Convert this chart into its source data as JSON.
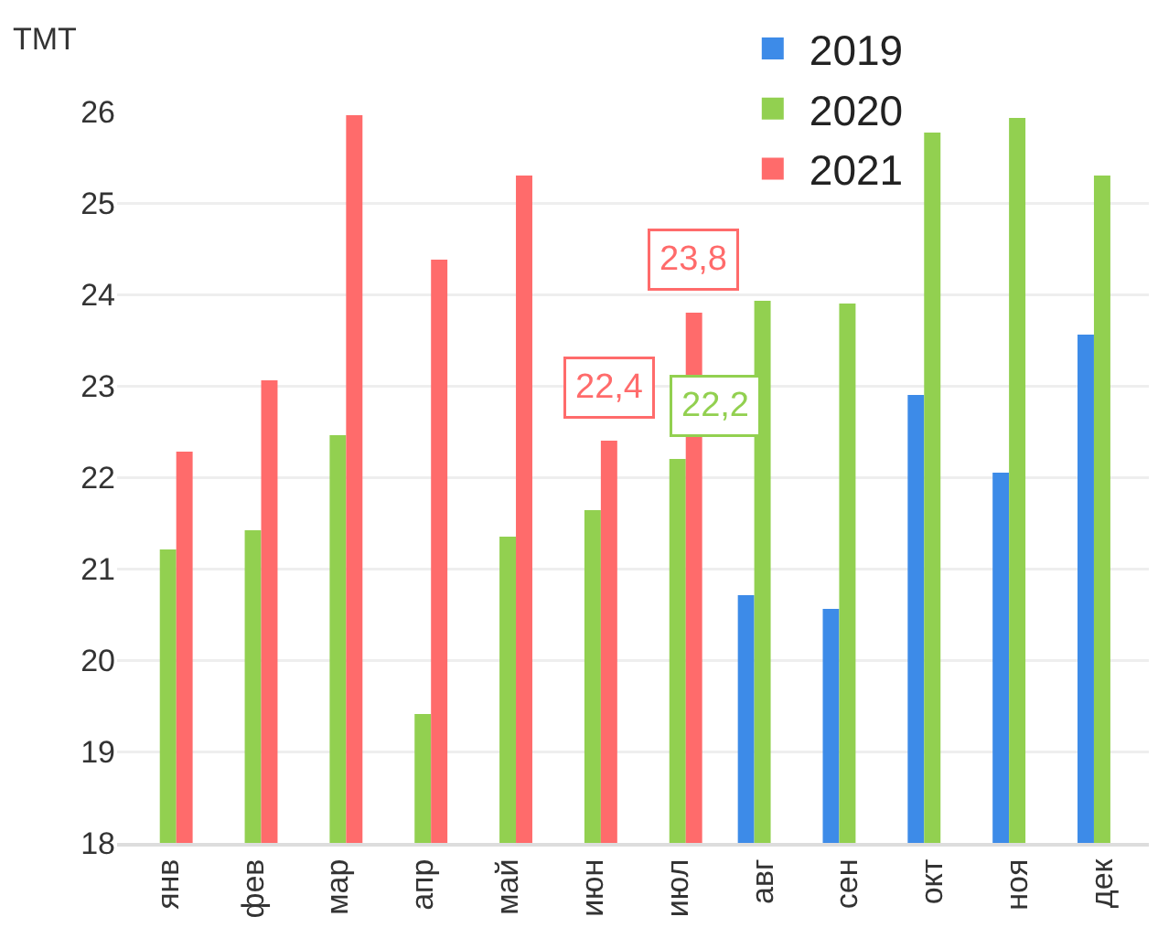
{
  "chart_data": {
    "type": "bar",
    "ylabel": "ТМТ",
    "categories": [
      "янв",
      "фев",
      "мар",
      "апр",
      "май",
      "июн",
      "июл",
      "авг",
      "сен",
      "окт",
      "ноя",
      "дек"
    ],
    "series": [
      {
        "name": "2019",
        "color": "#3d8be8",
        "values": [
          null,
          null,
          null,
          null,
          null,
          null,
          null,
          20.71,
          20.56,
          22.9,
          22.05,
          23.56
        ]
      },
      {
        "name": "2020",
        "color": "#92d050",
        "values": [
          21.21,
          21.42,
          22.46,
          19.41,
          21.35,
          21.64,
          22.2,
          23.93,
          23.9,
          25.77,
          25.93,
          25.3
        ],
        "value_labels": [
          null,
          null,
          null,
          null,
          null,
          null,
          "22,2",
          null,
          null,
          null,
          null,
          null
        ]
      },
      {
        "name": "2021",
        "color": "#ff6b6b",
        "values": [
          22.28,
          23.06,
          25.96,
          24.38,
          25.3,
          22.4,
          23.8,
          null,
          null,
          null,
          null,
          null
        ],
        "value_labels": [
          null,
          null,
          null,
          null,
          null,
          "22,4",
          "23,8",
          null,
          null,
          null,
          null,
          null
        ]
      }
    ],
    "ylim": [
      18,
      26
    ],
    "yticks": [
      18,
      19,
      20,
      21,
      22,
      23,
      24,
      25,
      26
    ],
    "grid": "y",
    "legend": "top"
  }
}
